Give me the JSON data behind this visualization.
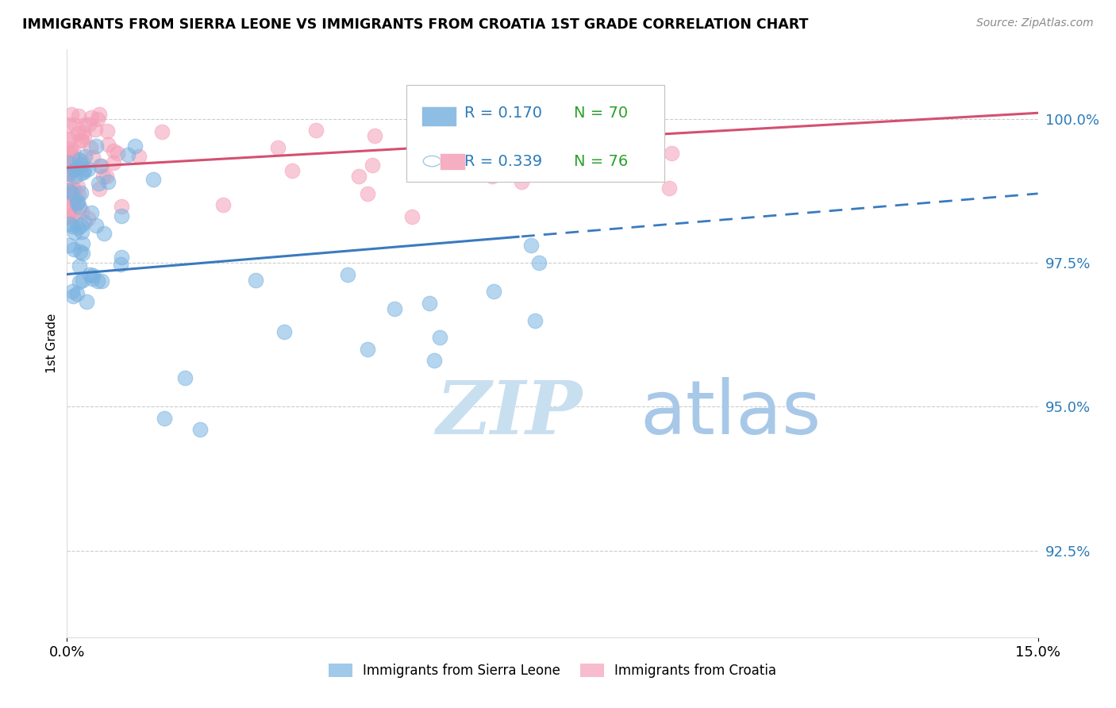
{
  "title": "IMMIGRANTS FROM SIERRA LEONE VS IMMIGRANTS FROM CROATIA 1ST GRADE CORRELATION CHART",
  "source_text": "Source: ZipAtlas.com",
  "ylabel": "1st Grade",
  "y_ticks": [
    92.5,
    95.0,
    97.5,
    100.0
  ],
  "y_tick_labels": [
    "92.5%",
    "95.0%",
    "97.5%",
    "100.0%"
  ],
  "x_min": 0.0,
  "x_max": 15.0,
  "y_min": 91.0,
  "y_max": 101.2,
  "sierra_leone_color": "#7ab3e0",
  "croatia_color": "#f4a0b8",
  "sierra_leone_R": 0.17,
  "sierra_leone_N": 70,
  "croatia_R": 0.339,
  "croatia_N": 76,
  "legend_R_color": "#2b7bba",
  "legend_N_color": "#2ba02b",
  "watermark_zip": "ZIP",
  "watermark_atlas": "atlas",
  "watermark_color_zip": "#c8dff0",
  "watermark_color_atlas": "#a8c8e8",
  "trend_blue_color": "#3a7abf",
  "trend_pink_color": "#d45070",
  "bottom_legend_sl": "Immigrants from Sierra Leone",
  "bottom_legend_cr": "Immigrants from Croatia"
}
